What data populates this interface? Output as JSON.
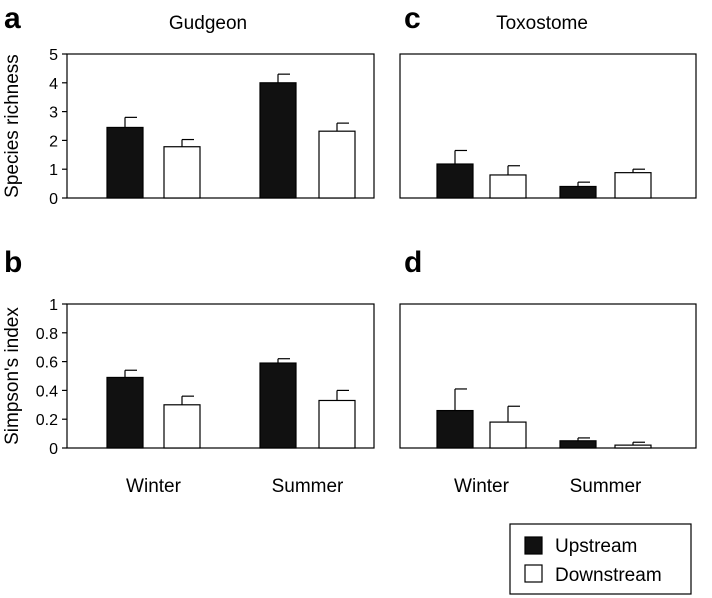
{
  "legend": {
    "upstream": "Upstream",
    "downstream": "Downstream"
  },
  "colors": {
    "upstream": "#111111",
    "downstream": "#ffffff",
    "stroke": "#000000"
  },
  "chart_data": [
    {
      "panel": "a",
      "type": "bar",
      "title": "Gudgeon",
      "ylabel": "Species richness",
      "ylim": [
        0,
        5
      ],
      "yticks": [
        "0",
        "1",
        "2",
        "3",
        "4",
        "5"
      ],
      "categories": [
        "Winter",
        "Summer"
      ],
      "show_categories": false,
      "series": [
        {
          "name": "Upstream",
          "values": [
            2.45,
            4.0
          ],
          "errors": [
            0.35,
            0.3
          ]
        },
        {
          "name": "Downstream",
          "values": [
            1.78,
            2.32
          ],
          "errors": [
            0.25,
            0.28
          ]
        }
      ]
    },
    {
      "panel": "b",
      "type": "bar",
      "title": "",
      "ylabel": "Simpson's index",
      "ylim": [
        0,
        1
      ],
      "yticks": [
        "0",
        "0.2",
        "0.4",
        "0.6",
        "0.8",
        "1"
      ],
      "categories": [
        "Winter",
        "Summer"
      ],
      "show_categories": true,
      "series": [
        {
          "name": "Upstream",
          "values": [
            0.49,
            0.59
          ],
          "errors": [
            0.05,
            0.03
          ]
        },
        {
          "name": "Downstream",
          "values": [
            0.3,
            0.33
          ],
          "errors": [
            0.06,
            0.07
          ]
        }
      ]
    },
    {
      "panel": "c",
      "type": "bar",
      "title": "Toxostome",
      "ylabel": "",
      "ylim": [
        0,
        5
      ],
      "yticks": [],
      "categories": [
        "Winter",
        "Summer"
      ],
      "show_categories": false,
      "series": [
        {
          "name": "Upstream",
          "values": [
            1.18,
            0.4
          ],
          "errors": [
            0.47,
            0.15
          ]
        },
        {
          "name": "Downstream",
          "values": [
            0.8,
            0.88
          ],
          "errors": [
            0.32,
            0.12
          ]
        }
      ]
    },
    {
      "panel": "d",
      "type": "bar",
      "title": "",
      "ylabel": "",
      "ylim": [
        0,
        1
      ],
      "yticks": [],
      "categories": [
        "Winter",
        "Summer"
      ],
      "show_categories": true,
      "series": [
        {
          "name": "Upstream",
          "values": [
            0.26,
            0.05
          ],
          "errors": [
            0.15,
            0.02
          ]
        },
        {
          "name": "Downstream",
          "values": [
            0.18,
            0.02
          ],
          "errors": [
            0.11,
            0.02
          ]
        }
      ]
    }
  ]
}
